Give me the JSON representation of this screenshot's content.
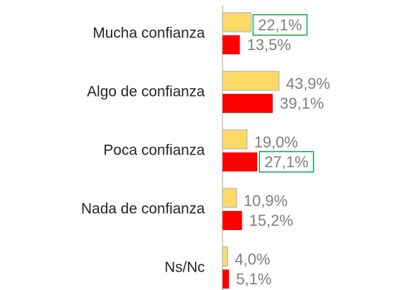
{
  "chart_data": {
    "type": "hbar",
    "categories": [
      "Mucha confianza",
      "Algo de confianza",
      "Poca confianza",
      "Nada de confianza",
      "Ns/Nc"
    ],
    "series": [
      {
        "color": "#FFD966",
        "values": [
          22.1,
          43.9,
          19.0,
          10.9,
          4.0
        ],
        "value_labels": [
          "22,1%",
          "43,9%",
          "19,0%",
          "10,9%",
          "4,0%"
        ]
      },
      {
        "color": "#FF0000",
        "values": [
          13.5,
          39.1,
          27.1,
          15.2,
          5.1
        ],
        "value_labels": [
          "13,5%",
          "39,1%",
          "27,1%",
          "15,2%",
          "5,1%"
        ]
      }
    ],
    "xlim": [
      0,
      50
    ],
    "highlight": [
      {
        "series": 0,
        "index": 0
      },
      {
        "series": 1,
        "index": 2
      }
    ],
    "highlight_color": "#00B050"
  }
}
